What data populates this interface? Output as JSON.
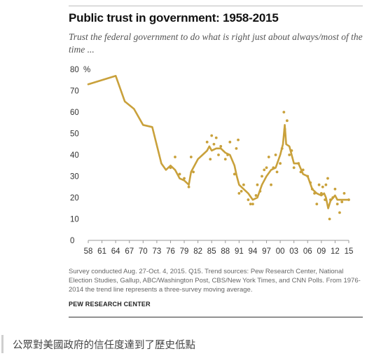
{
  "header": {
    "title": "Public trust in government: 1958-2015",
    "subtitle": "Trust the federal government to do what is right just about always/most of the time ..."
  },
  "footer": {
    "source": "Survey conducted Aug. 27-Oct. 4, 2015. Q15. Trend sources: Pew Research Center, National Election Studies, Gallup, ABC/Washington Post, CBS/New York Times, and CNN Polls. From 1976-2014 the trend line represents a three-survey moving average.",
    "org": "PEW RESEARCH CENTER"
  },
  "caption": "公眾對美國政府的信任度達到了歷史低點",
  "colors": {
    "series": "#c9a13b",
    "axis": "#999999",
    "text": "#333333"
  },
  "chart_data": {
    "type": "line",
    "title": "Public trust in government: 1958-2015",
    "subtitle": "Trust the federal government to do what is right just about always/most of the time ...",
    "xlim": [
      1958,
      2015
    ],
    "ylim": [
      0,
      80
    ],
    "x_ticks": [
      1958,
      1961,
      1964,
      1967,
      1970,
      1973,
      1976,
      1979,
      1982,
      1985,
      1988,
      1991,
      1994,
      1997,
      2000,
      2003,
      2006,
      2009,
      2012,
      2015
    ],
    "x_tick_labels": [
      "58",
      "61",
      "64",
      "67",
      "70",
      "73",
      "76",
      "79",
      "82",
      "85",
      "88",
      "91",
      "94",
      "97",
      "00",
      "03",
      "06",
      "09",
      "12",
      "15"
    ],
    "y_ticks": [
      0,
      10,
      20,
      30,
      40,
      50,
      60,
      70,
      80
    ],
    "y_tick_labels": [
      "0",
      "10",
      "20",
      "30",
      "40",
      "50",
      "60",
      "70",
      "80"
    ],
    "y_unit": "%",
    "grid": false,
    "series": [
      {
        "kind": "line",
        "points": [
          [
            1958,
            73
          ],
          [
            1964,
            77
          ],
          [
            1966,
            65
          ],
          [
            1968,
            61.5
          ],
          [
            1970,
            54
          ],
          [
            1972,
            53
          ],
          [
            1974,
            36
          ],
          [
            1975,
            33
          ],
          [
            1976,
            35
          ],
          [
            1977,
            33
          ],
          [
            1978,
            29
          ],
          [
            1979,
            28
          ],
          [
            1980,
            26
          ],
          [
            1980.5,
            32
          ],
          [
            1982,
            38
          ],
          [
            1983,
            40
          ],
          [
            1984,
            42
          ],
          [
            1984.5,
            44
          ],
          [
            1985,
            42
          ],
          [
            1986,
            43
          ],
          [
            1987,
            43
          ],
          [
            1988,
            41
          ],
          [
            1989,
            40
          ],
          [
            1990,
            35
          ],
          [
            1990.5,
            30
          ],
          [
            1991,
            26
          ],
          [
            1992,
            24
          ],
          [
            1993,
            22
          ],
          [
            1994,
            19
          ],
          [
            1995,
            20
          ],
          [
            1996,
            26
          ],
          [
            1997,
            30
          ],
          [
            1998,
            33
          ],
          [
            1999,
            34
          ],
          [
            2000,
            40
          ],
          [
            2000.6,
            45
          ],
          [
            2001,
            54
          ],
          [
            2001.3,
            45
          ],
          [
            2002,
            44
          ],
          [
            2002.5,
            40
          ],
          [
            2003,
            36
          ],
          [
            2004,
            36
          ],
          [
            2005,
            31
          ],
          [
            2006,
            30
          ],
          [
            2007,
            24
          ],
          [
            2008,
            22
          ],
          [
            2009,
            21
          ],
          [
            2009.6,
            22
          ],
          [
            2010,
            20
          ],
          [
            2010.5,
            15
          ],
          [
            2011,
            18.5
          ],
          [
            2012,
            21
          ],
          [
            2012.5,
            19
          ],
          [
            2013,
            19
          ],
          [
            2014,
            19
          ],
          [
            2015,
            19
          ]
        ]
      },
      {
        "kind": "scatter",
        "points": [
          [
            1976,
            34
          ],
          [
            1977,
            39
          ],
          [
            1978,
            31
          ],
          [
            1979,
            29
          ],
          [
            1980,
            25
          ],
          [
            1980.5,
            39
          ],
          [
            1981,
            32
          ],
          [
            1984,
            46
          ],
          [
            1984.7,
            38
          ],
          [
            1985,
            49
          ],
          [
            1985.5,
            45
          ],
          [
            1986,
            48
          ],
          [
            1986.5,
            40
          ],
          [
            1987,
            44
          ],
          [
            1988,
            38
          ],
          [
            1988.5,
            40
          ],
          [
            1989,
            46
          ],
          [
            1990,
            31
          ],
          [
            1990.4,
            43
          ],
          [
            1990.8,
            47
          ],
          [
            1991,
            22
          ],
          [
            1991.5,
            23
          ],
          [
            1992,
            26
          ],
          [
            1993,
            19
          ],
          [
            1993.5,
            17
          ],
          [
            1994,
            17
          ],
          [
            1994.7,
            21
          ],
          [
            1995,
            26
          ],
          [
            1995.6,
            23
          ],
          [
            1996,
            30
          ],
          [
            1996.5,
            33
          ],
          [
            1997,
            34
          ],
          [
            1997.5,
            39
          ],
          [
            1998,
            26
          ],
          [
            1998.5,
            34
          ],
          [
            1999,
            40
          ],
          [
            1999.3,
            32
          ],
          [
            2000,
            36
          ],
          [
            2000.4,
            43
          ],
          [
            2000.8,
            60
          ],
          [
            2001,
            52
          ],
          [
            2001.5,
            56
          ],
          [
            2002,
            40
          ],
          [
            2002.5,
            42
          ],
          [
            2003,
            34
          ],
          [
            2004,
            36
          ],
          [
            2004.5,
            32
          ],
          [
            2005,
            33
          ],
          [
            2006,
            30
          ],
          [
            2006.6,
            27
          ],
          [
            2007,
            24
          ],
          [
            2007.5,
            22
          ],
          [
            2008,
            17
          ],
          [
            2008.5,
            26
          ],
          [
            2009,
            22
          ],
          [
            2009.3,
            25
          ],
          [
            2009.8,
            19
          ],
          [
            2010,
            26
          ],
          [
            2010.4,
            29
          ],
          [
            2010.8,
            10
          ],
          [
            2011,
            19
          ],
          [
            2011.5,
            20
          ],
          [
            2012,
            24
          ],
          [
            2012.5,
            17
          ],
          [
            2013,
            13
          ],
          [
            2013.5,
            18
          ],
          [
            2014,
            22
          ],
          [
            2015,
            19
          ]
        ]
      }
    ]
  }
}
